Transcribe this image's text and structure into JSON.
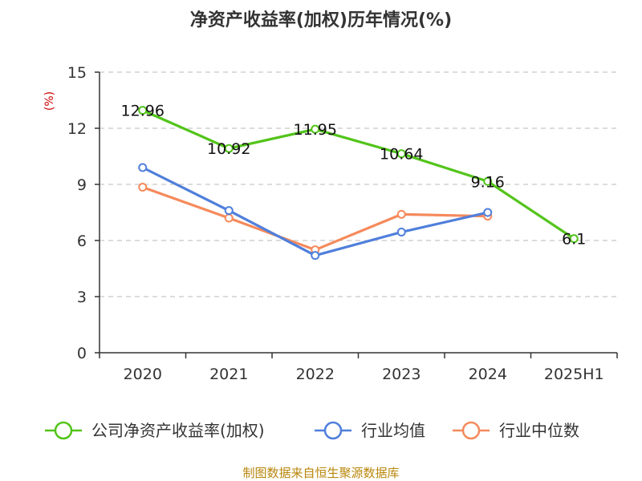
{
  "title": "净资产收益率(加权)历年情况(%)",
  "y_unit": "(%)",
  "source": "制图数据来自恒生聚源数据库",
  "colors": {
    "company": "#52c41a",
    "industry_avg": "#4f7fdb",
    "industry_median": "#f58a5c",
    "grid": "#c8c8c8",
    "axis": "#333333",
    "source": "#b8860b"
  },
  "chart_data": {
    "type": "line",
    "title": "净资产收益率(加权)历年情况(%)",
    "xlabel": "",
    "ylabel": "(%)",
    "categories": [
      "2020",
      "2021",
      "2022",
      "2023",
      "2024",
      "2025H1"
    ],
    "ylim": [
      0,
      15
    ],
    "yticks": [
      0,
      3,
      6,
      9,
      12,
      15
    ],
    "grid": true,
    "legend_position": "bottom",
    "series": [
      {
        "name": "公司净资产收益率(加权)",
        "values": [
          12.96,
          10.92,
          11.95,
          10.64,
          9.16,
          6.1
        ],
        "labels": [
          "12.96",
          "10.92",
          "11.95",
          "10.64",
          "9.16",
          "6.1"
        ],
        "color": "#52c41a"
      },
      {
        "name": "行业均值",
        "values": [
          9.9,
          7.6,
          5.2,
          6.45,
          7.5,
          null
        ],
        "color": "#4f7fdb"
      },
      {
        "name": "行业中位数",
        "values": [
          8.85,
          7.2,
          5.5,
          7.4,
          7.3,
          null
        ],
        "color": "#f58a5c"
      }
    ]
  }
}
